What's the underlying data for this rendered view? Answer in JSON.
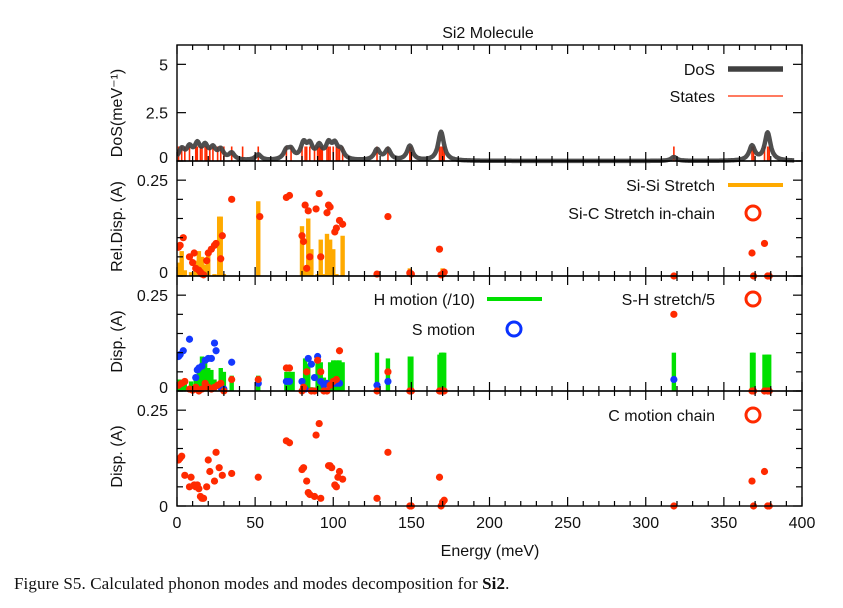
{
  "chart_data": {
    "type": "scatter",
    "title": "Si2 Molecule",
    "xlabel": "Energy (meV)",
    "xlim": [
      0,
      400
    ],
    "xticks": [
      0,
      50,
      100,
      150,
      200,
      250,
      300,
      350,
      400
    ],
    "x_minor_step": 10,
    "panels": [
      {
        "id": "dos",
        "ylabel": "DoS(meV⁻¹)",
        "ylim": [
          0,
          6
        ],
        "yticks": [
          0,
          2.5,
          5
        ],
        "ytick_labels": [
          "0",
          "2.5",
          "5"
        ],
        "legend": [
          {
            "label": "DoS",
            "style": "thick-line",
            "color": "#404040"
          },
          {
            "label": "States",
            "style": "thin-line",
            "color": "#ff2a00"
          }
        ],
        "legend_position": "top-right",
        "states_energies": [
          1,
          3,
          5,
          8,
          12,
          13,
          15,
          16,
          18,
          19,
          21,
          23,
          26,
          28,
          30,
          35,
          42,
          52,
          70,
          73,
          80,
          82,
          83,
          85,
          88,
          90,
          91,
          92,
          93,
          96,
          97,
          98,
          100,
          102,
          103,
          104,
          106,
          128,
          135,
          149,
          150,
          168,
          169,
          170,
          171,
          318,
          368,
          369,
          376,
          378,
          379
        ],
        "state_height": 0.75,
        "dos_peaks": [
          {
            "e": 3,
            "h": 0.55
          },
          {
            "e": 8,
            "h": 0.6
          },
          {
            "e": 13,
            "h": 0.75
          },
          {
            "e": 18,
            "h": 0.65
          },
          {
            "e": 23,
            "h": 0.55
          },
          {
            "e": 28,
            "h": 0.5
          },
          {
            "e": 35,
            "h": 0.35
          },
          {
            "e": 52,
            "h": 0.3
          },
          {
            "e": 70,
            "h": 0.45
          },
          {
            "e": 73,
            "h": 0.45
          },
          {
            "e": 81,
            "h": 0.8
          },
          {
            "e": 85,
            "h": 0.7
          },
          {
            "e": 91,
            "h": 0.65
          },
          {
            "e": 97,
            "h": 0.75
          },
          {
            "e": 101,
            "h": 0.7
          },
          {
            "e": 105,
            "h": 0.45
          },
          {
            "e": 128,
            "h": 0.55
          },
          {
            "e": 135,
            "h": 0.55
          },
          {
            "e": 149,
            "h": 0.75
          },
          {
            "e": 169,
            "h": 1.5
          },
          {
            "e": 318,
            "h": 0.2
          },
          {
            "e": 368,
            "h": 0.75
          },
          {
            "e": 378,
            "h": 1.45
          }
        ]
      },
      {
        "id": "rel-disp",
        "ylabel": "Rel.Disp. (A)",
        "ylim": [
          0,
          0.3
        ],
        "yticks": [
          0,
          0.25
        ],
        "ytick_labels": [
          "0",
          "0.25"
        ],
        "y_minor_step": 0.05,
        "legend": [
          {
            "label": "Si-Si Stretch",
            "style": "thick-line",
            "color": "#ffaa00"
          },
          {
            "label": "Si-C Stretch in-chain",
            "style": "open-circle",
            "color": "#ff2a00"
          }
        ],
        "legend_position": "top-right",
        "bars": {
          "name": "Si-Si Stretch",
          "x": [
            1,
            3,
            5,
            9,
            12,
            14,
            16,
            18,
            20,
            24,
            27,
            28,
            30,
            52,
            80,
            82,
            84,
            86,
            90,
            92,
            94,
            96,
            98,
            100,
            102,
            106,
            149,
            170
          ],
          "values": [
            0.035,
            0.065,
            0.015,
            0.01,
            0.04,
            0.065,
            0.05,
            0.03,
            0.055,
            0.005,
            0.155,
            0.155,
            0.005,
            0.195,
            0.13,
            0.02,
            0.15,
            0.07,
            0.005,
            0.095,
            0.005,
            0.11,
            0.095,
            0.07,
            0.005,
            0.105,
            0.02,
            0.02
          ]
        },
        "points": {
          "name": "Si-C Stretch in-chain",
          "x": [
            1,
            2,
            4,
            8,
            10,
            11,
            12,
            14,
            15,
            16,
            17,
            19,
            20,
            22,
            24,
            25,
            28,
            29,
            35,
            53,
            70,
            72,
            80,
            81,
            82,
            83,
            84,
            85,
            89,
            91,
            92,
            96,
            97,
            98,
            101,
            102,
            104,
            106,
            128,
            135,
            149,
            150,
            168,
            169,
            170,
            171,
            318,
            368,
            369,
            376,
            378,
            379
          ],
          "values": [
            0.075,
            0.08,
            0.1,
            0.05,
            0.035,
            0.06,
            0.02,
            0.015,
            0.01,
            0.005,
            0.003,
            0.04,
            0.06,
            0.07,
            0.08,
            0.085,
            0.045,
            0.105,
            0.2,
            0.155,
            0.205,
            0.21,
            0.105,
            0.09,
            0.185,
            0.02,
            0.17,
            0.05,
            0.175,
            0.215,
            0.05,
            0.165,
            0.185,
            0.18,
            0.115,
            0.125,
            0.145,
            0.135,
            0.005,
            0.155,
            0.008,
            0.005,
            0.07,
            0.003,
            0.005,
            0.01,
            0.0,
            0.06,
            0.0,
            0.085,
            0.0,
            0.0
          ]
        }
      },
      {
        "id": "disp-h-s",
        "ylabel": "Disp. (A)",
        "ylim": [
          0,
          0.3
        ],
        "yticks": [
          0,
          0.25
        ],
        "ytick_labels": [
          "0",
          "0.25"
        ],
        "y_minor_step": 0.05,
        "legend": [
          {
            "label": "H motion (/10)",
            "style": "thick-line",
            "color": "#00e000"
          },
          {
            "label": "S-H stretch/5",
            "style": "open-circle",
            "color": "#ff2a00"
          },
          {
            "label": "S motion",
            "style": "open-circle",
            "color": "#0a32ff"
          }
        ],
        "legend_position": "top",
        "bars": {
          "name": "H motion (/10)",
          "x": [
            1,
            3,
            5,
            9,
            12,
            14,
            16,
            18,
            20,
            22,
            24,
            28,
            30,
            35,
            52,
            70,
            72,
            74,
            82,
            84,
            86,
            90,
            92,
            94,
            98,
            100,
            102,
            104,
            106,
            128,
            135,
            149,
            150,
            168,
            169,
            170,
            171,
            318,
            368,
            369,
            376,
            378,
            379
          ],
          "values": [
            0.03,
            0.03,
            0.03,
            0.025,
            0.04,
            0.06,
            0.09,
            0.085,
            0.06,
            0.055,
            0.03,
            0.06,
            0.05,
            0.04,
            0.04,
            0.05,
            0.05,
            0.05,
            0.085,
            0.07,
            0.01,
            0.075,
            0.075,
            0.035,
            0.075,
            0.08,
            0.08,
            0.08,
            0.075,
            0.1,
            0.085,
            0.09,
            0.09,
            0.095,
            0.1,
            0.1,
            0.1,
            0.1,
            0.1,
            0.1,
            0.095,
            0.095,
            0.095
          ],
          "note": "values shown divided by 10"
        },
        "s_points": {
          "name": "S motion",
          "x": [
            1,
            2,
            4,
            8,
            12,
            13,
            14,
            16,
            18,
            20,
            22,
            24,
            25,
            28,
            30,
            35,
            52,
            70,
            72,
            80,
            82,
            84,
            86,
            88,
            90,
            92,
            94,
            96,
            98,
            100,
            102,
            104,
            128,
            135,
            318
          ],
          "values": [
            0.09,
            0.095,
            0.105,
            0.135,
            0.035,
            0.055,
            0.06,
            0.065,
            0.08,
            0.085,
            0.085,
            0.125,
            0.105,
            0.01,
            0.005,
            0.075,
            0.02,
            0.025,
            0.025,
            0.025,
            0.005,
            0.085,
            0.07,
            0.035,
            0.09,
            0.025,
            0.015,
            0.02,
            0.015,
            0.02,
            0.02,
            0.02,
            0.015,
            0.025,
            0.03
          ]
        },
        "sh_points": {
          "name": "S-H stretch/5",
          "x": [
            1,
            3,
            5,
            8,
            10,
            12,
            14,
            16,
            18,
            20,
            22,
            24,
            26,
            28,
            30,
            35,
            52,
            70,
            72,
            80,
            81,
            83,
            86,
            88,
            90,
            92,
            94,
            96,
            98,
            100,
            102,
            104,
            128,
            135,
            149,
            150,
            168,
            169,
            170,
            171,
            318,
            368,
            369,
            376,
            378,
            379
          ],
          "values": [
            0.015,
            0.02,
            0.025,
            0.005,
            0.002,
            0.01,
            0.0,
            0.005,
            0.02,
            0.01,
            0.005,
            0.01,
            0.015,
            0.02,
            0.0,
            0.03,
            0.03,
            0.06,
            0.06,
            0.0,
            0.01,
            0.05,
            0.0,
            0.0,
            0.08,
            0.05,
            0.0,
            0.0,
            0.015,
            0.025,
            0.03,
            0.105,
            0.0,
            0.05,
            0.0,
            0.0,
            0.0,
            0.0,
            0.0,
            0.0,
            0.2,
            0.0,
            0.0,
            0.0,
            0.0,
            0.0
          ]
        }
      },
      {
        "id": "disp-c",
        "ylabel": "Disp. (A)",
        "ylim": [
          0,
          0.3
        ],
        "yticks": [
          0,
          0.25
        ],
        "ytick_labels": [
          "0",
          "0.25"
        ],
        "y_minor_step": 0.05,
        "legend": [
          {
            "label": "C motion chain",
            "style": "open-circle",
            "color": "#ff2a00"
          }
        ],
        "legend_position": "top-right",
        "points": {
          "name": "C motion chain",
          "x": [
            1,
            2,
            3,
            5,
            8,
            9,
            11,
            12,
            13,
            14,
            15,
            16,
            17,
            19,
            20,
            21,
            24,
            25,
            27,
            29,
            35,
            52,
            70,
            72,
            80,
            81,
            83,
            84,
            85,
            88,
            89,
            91,
            92,
            97,
            98,
            99,
            101,
            102,
            103,
            104,
            106,
            128,
            135,
            149,
            150,
            168,
            169,
            170,
            171,
            318,
            368,
            369,
            376,
            378,
            379
          ],
          "values": [
            0.12,
            0.125,
            0.13,
            0.08,
            0.05,
            0.075,
            0.055,
            0.05,
            0.055,
            0.045,
            0.025,
            0.02,
            0.02,
            0.05,
            0.12,
            0.09,
            0.065,
            0.14,
            0.1,
            0.08,
            0.085,
            0.075,
            0.17,
            0.165,
            0.095,
            0.1,
            0.065,
            0.035,
            0.03,
            0.025,
            0.185,
            0.215,
            0.02,
            0.105,
            0.105,
            0.1,
            0.055,
            0.05,
            0.075,
            0.09,
            0.07,
            0.02,
            0.14,
            0.0,
            0.0,
            0.075,
            0.0,
            0.01,
            0.015,
            0.0,
            0.065,
            0.0,
            0.09,
            0.0,
            0.0
          ]
        }
      }
    ]
  },
  "caption": {
    "prefix": "Figure S5. Calculated phonon modes and modes decomposition for ",
    "bold": "Si2",
    "suffix": "."
  }
}
